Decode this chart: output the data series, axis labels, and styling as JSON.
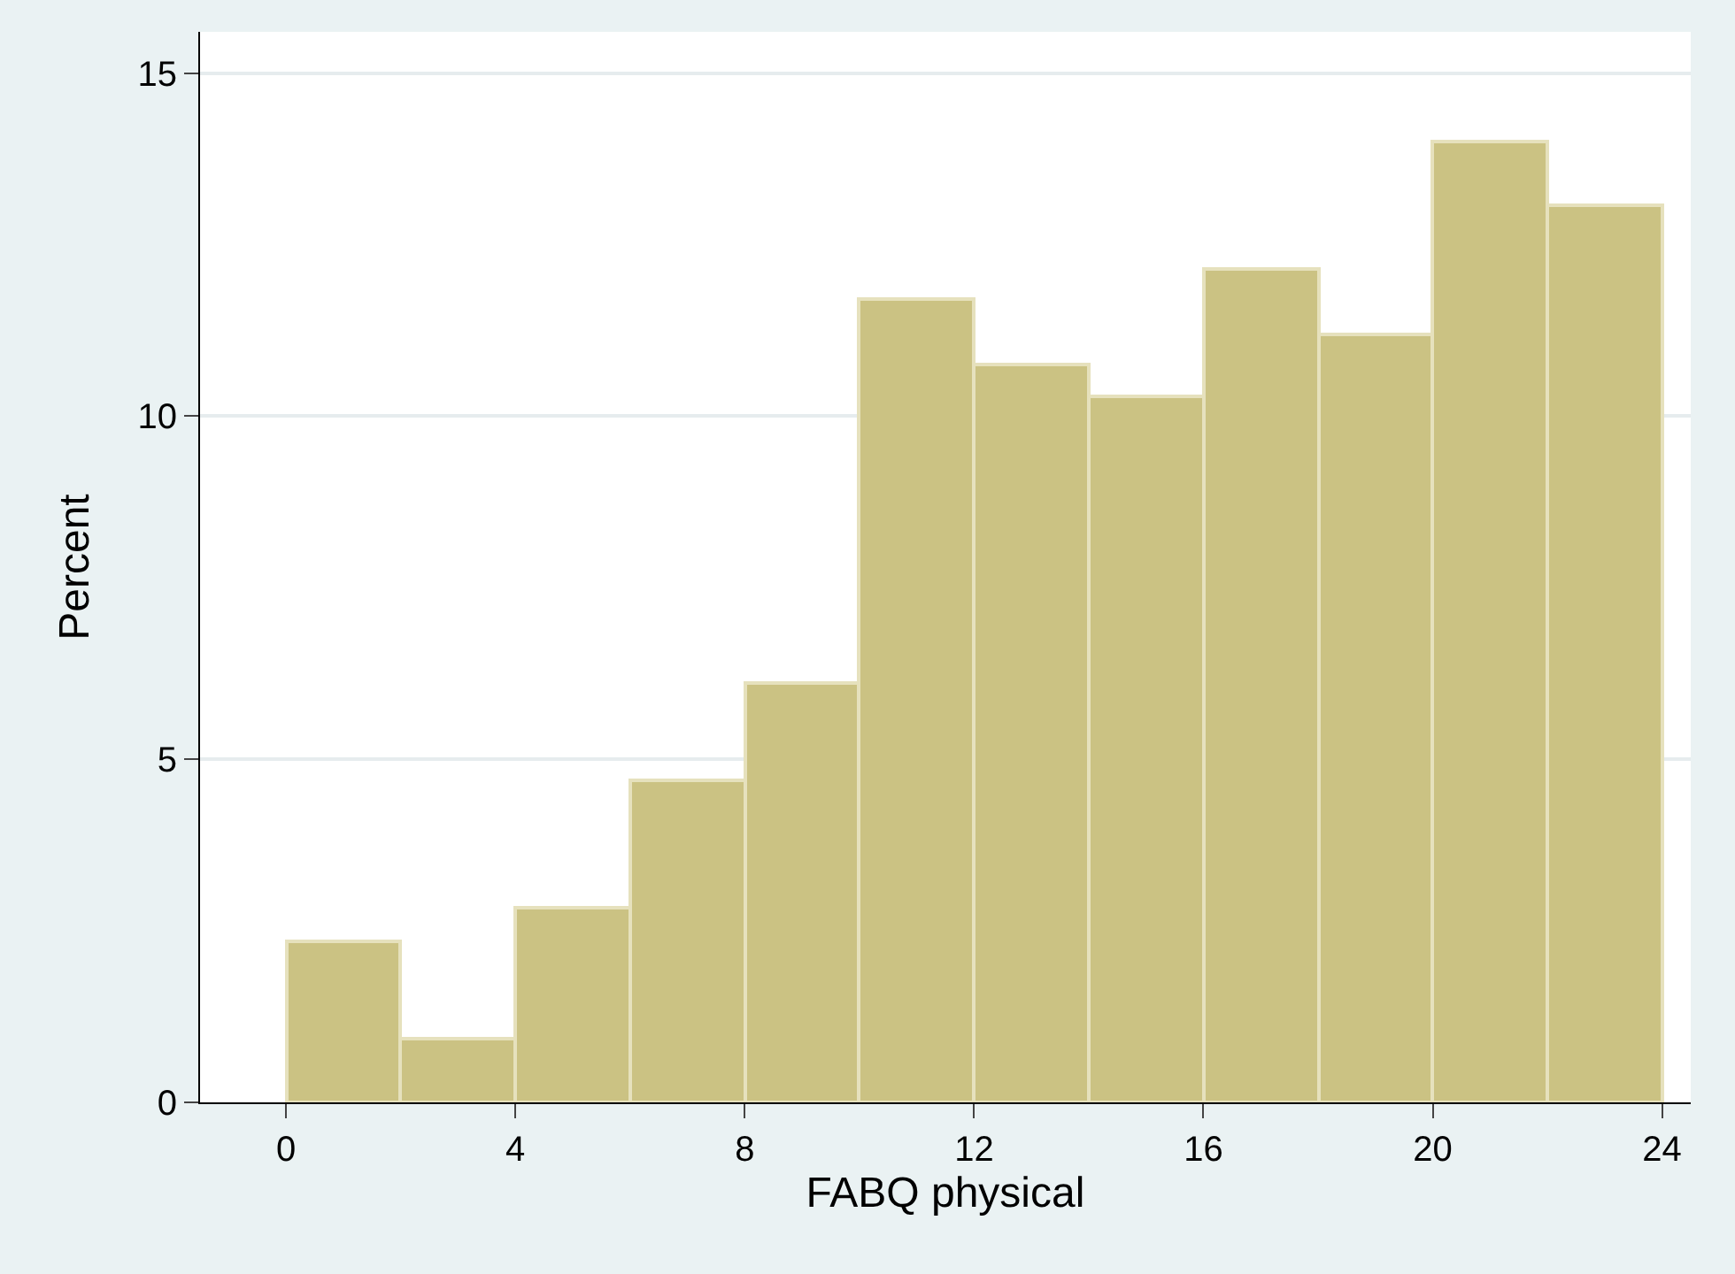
{
  "chart_data": {
    "type": "histogram",
    "xlabel": "FABQ physical",
    "ylabel": "Percent",
    "bins": [
      0,
      2,
      4,
      6,
      8,
      10,
      12,
      14,
      16,
      18,
      20,
      22,
      24
    ],
    "values": [
      2.34,
      0.94,
      2.83,
      4.7,
      6.11,
      11.7,
      10.74,
      10.29,
      12.14,
      11.2,
      14.01,
      13.07
    ],
    "color": "#cbc283",
    "xlim": [
      -1.5,
      24.5
    ],
    "xticks": [
      0,
      4,
      8,
      12,
      16,
      20,
      24
    ],
    "ylim": [
      0,
      15.6
    ],
    "yticks": [
      0,
      5,
      10,
      15
    ],
    "grid": "y",
    "legend": false
  }
}
